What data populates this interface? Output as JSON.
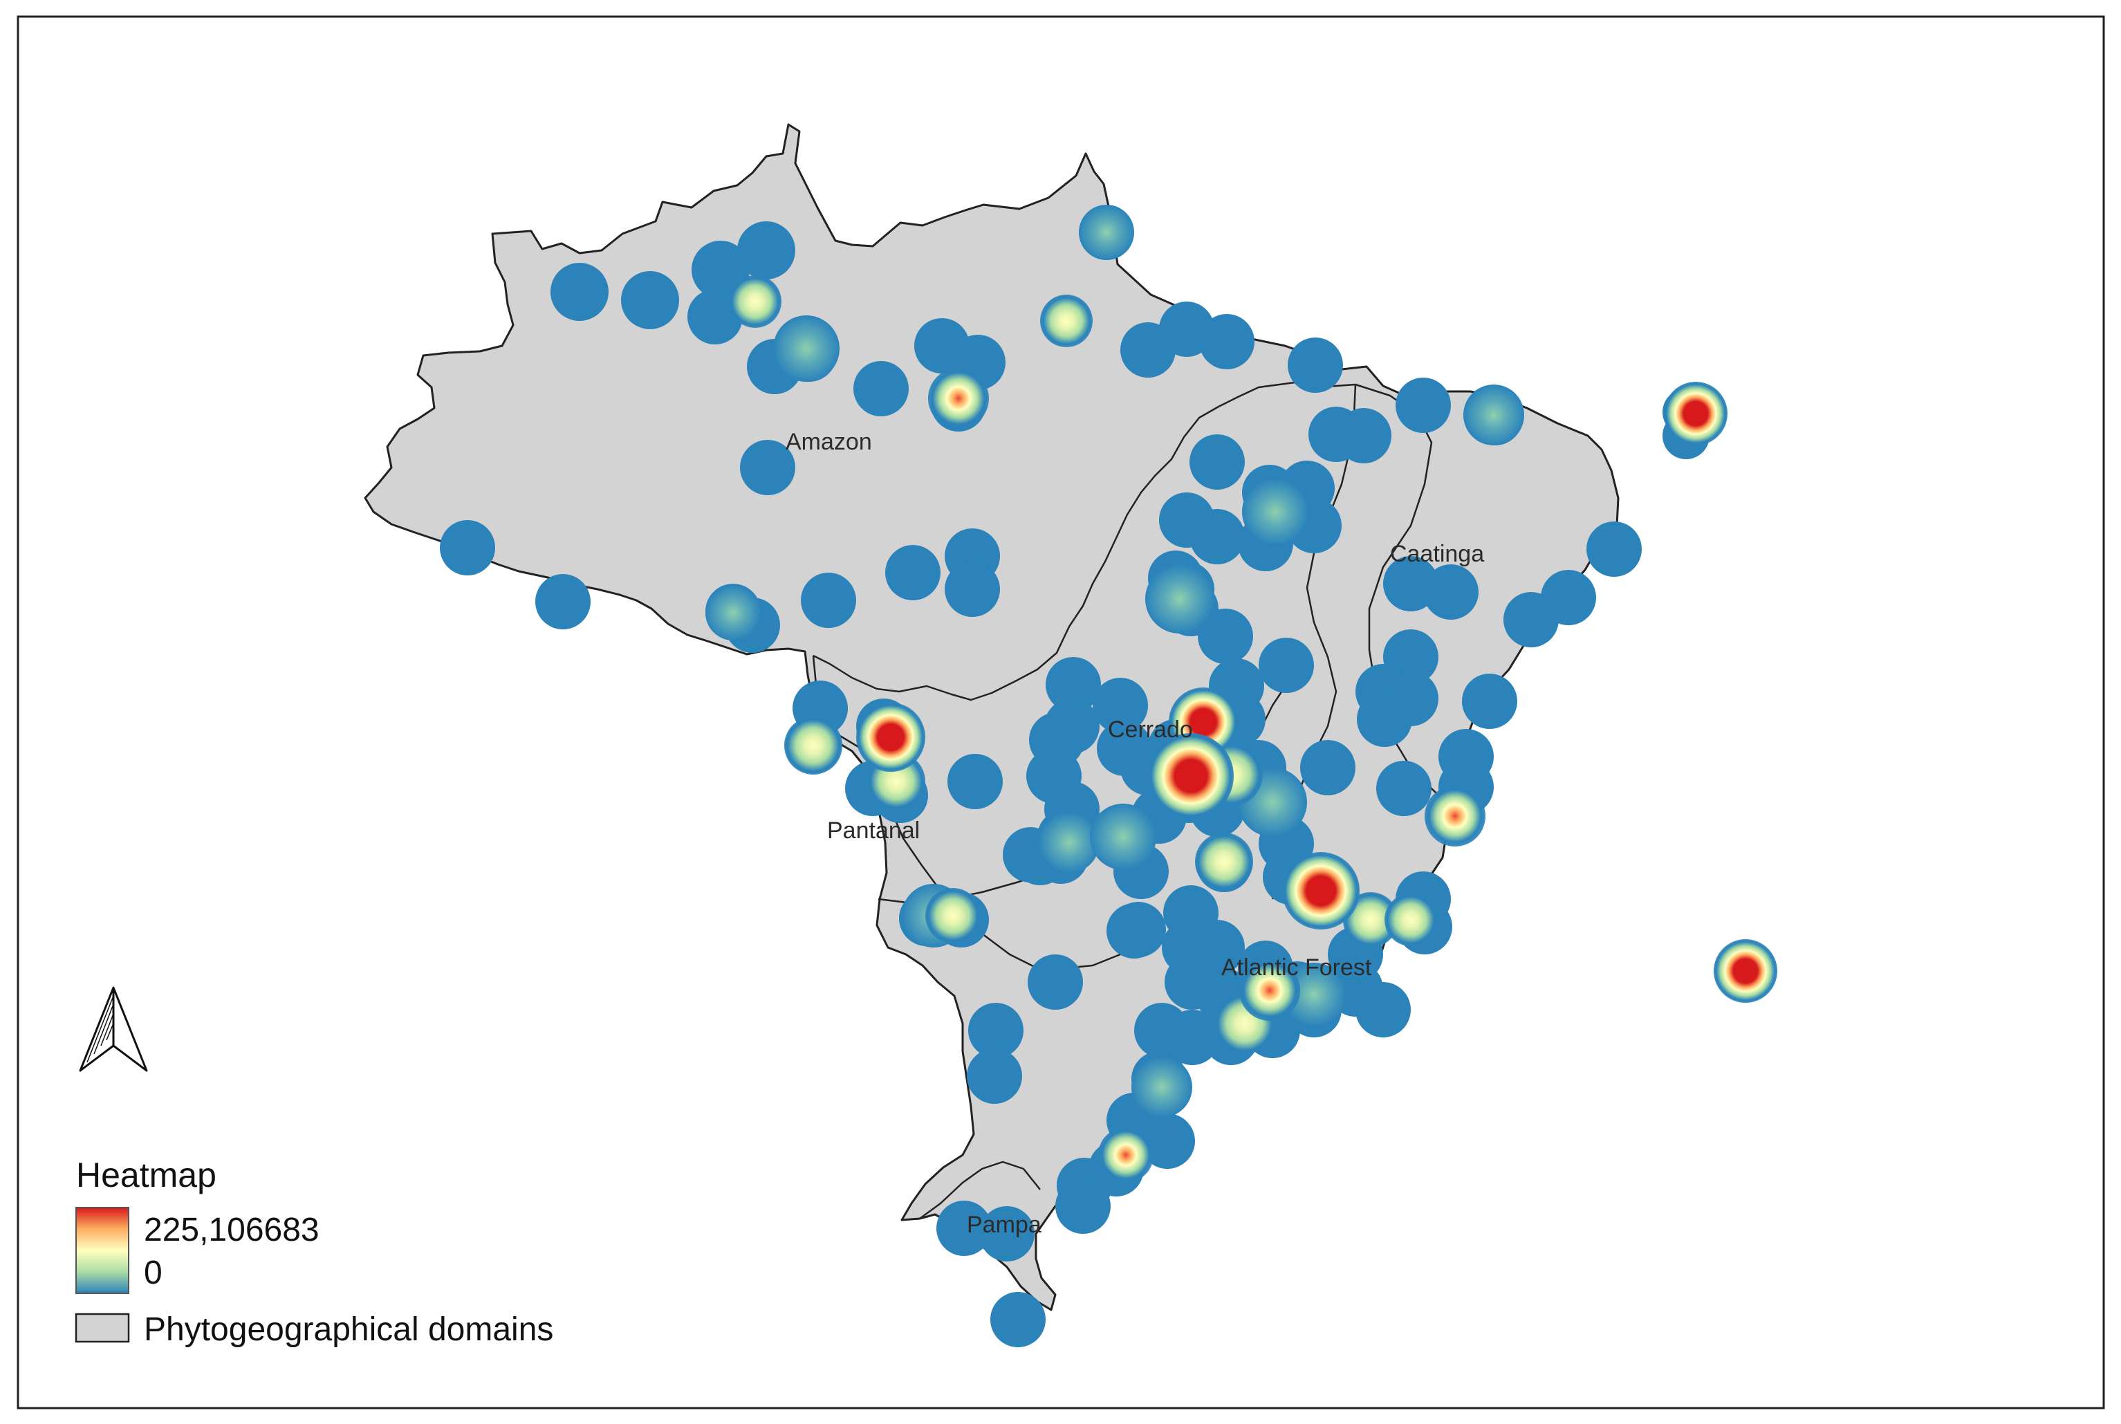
{
  "map": {
    "regions": [
      {
        "id": "amazon",
        "label": "Amazon"
      },
      {
        "id": "caatinga",
        "label": "Caatinga"
      },
      {
        "id": "cerrado",
        "label": "Cerrado"
      },
      {
        "id": "pantanal",
        "label": "Pantanal"
      },
      {
        "id": "atlantic",
        "label": "Atlantic Forest"
      },
      {
        "id": "pampa",
        "label": "Pampa"
      }
    ],
    "north_arrow_icon": "north-arrow-icon"
  },
  "legend": {
    "title": "Heatmap",
    "max_label": "225,106683",
    "min_label": "0",
    "domains_label": "Phytogeographical domains",
    "colors": {
      "high": "#d7191c",
      "mid_high": "#fdae61",
      "mid": "#ffffbf",
      "mid_low": "#abdda4",
      "low": "#2b83ba",
      "land": "#d3d3d3",
      "border": "#222222"
    }
  },
  "heatmap": {
    "max_value": 225.106683,
    "min_value": 0
  }
}
